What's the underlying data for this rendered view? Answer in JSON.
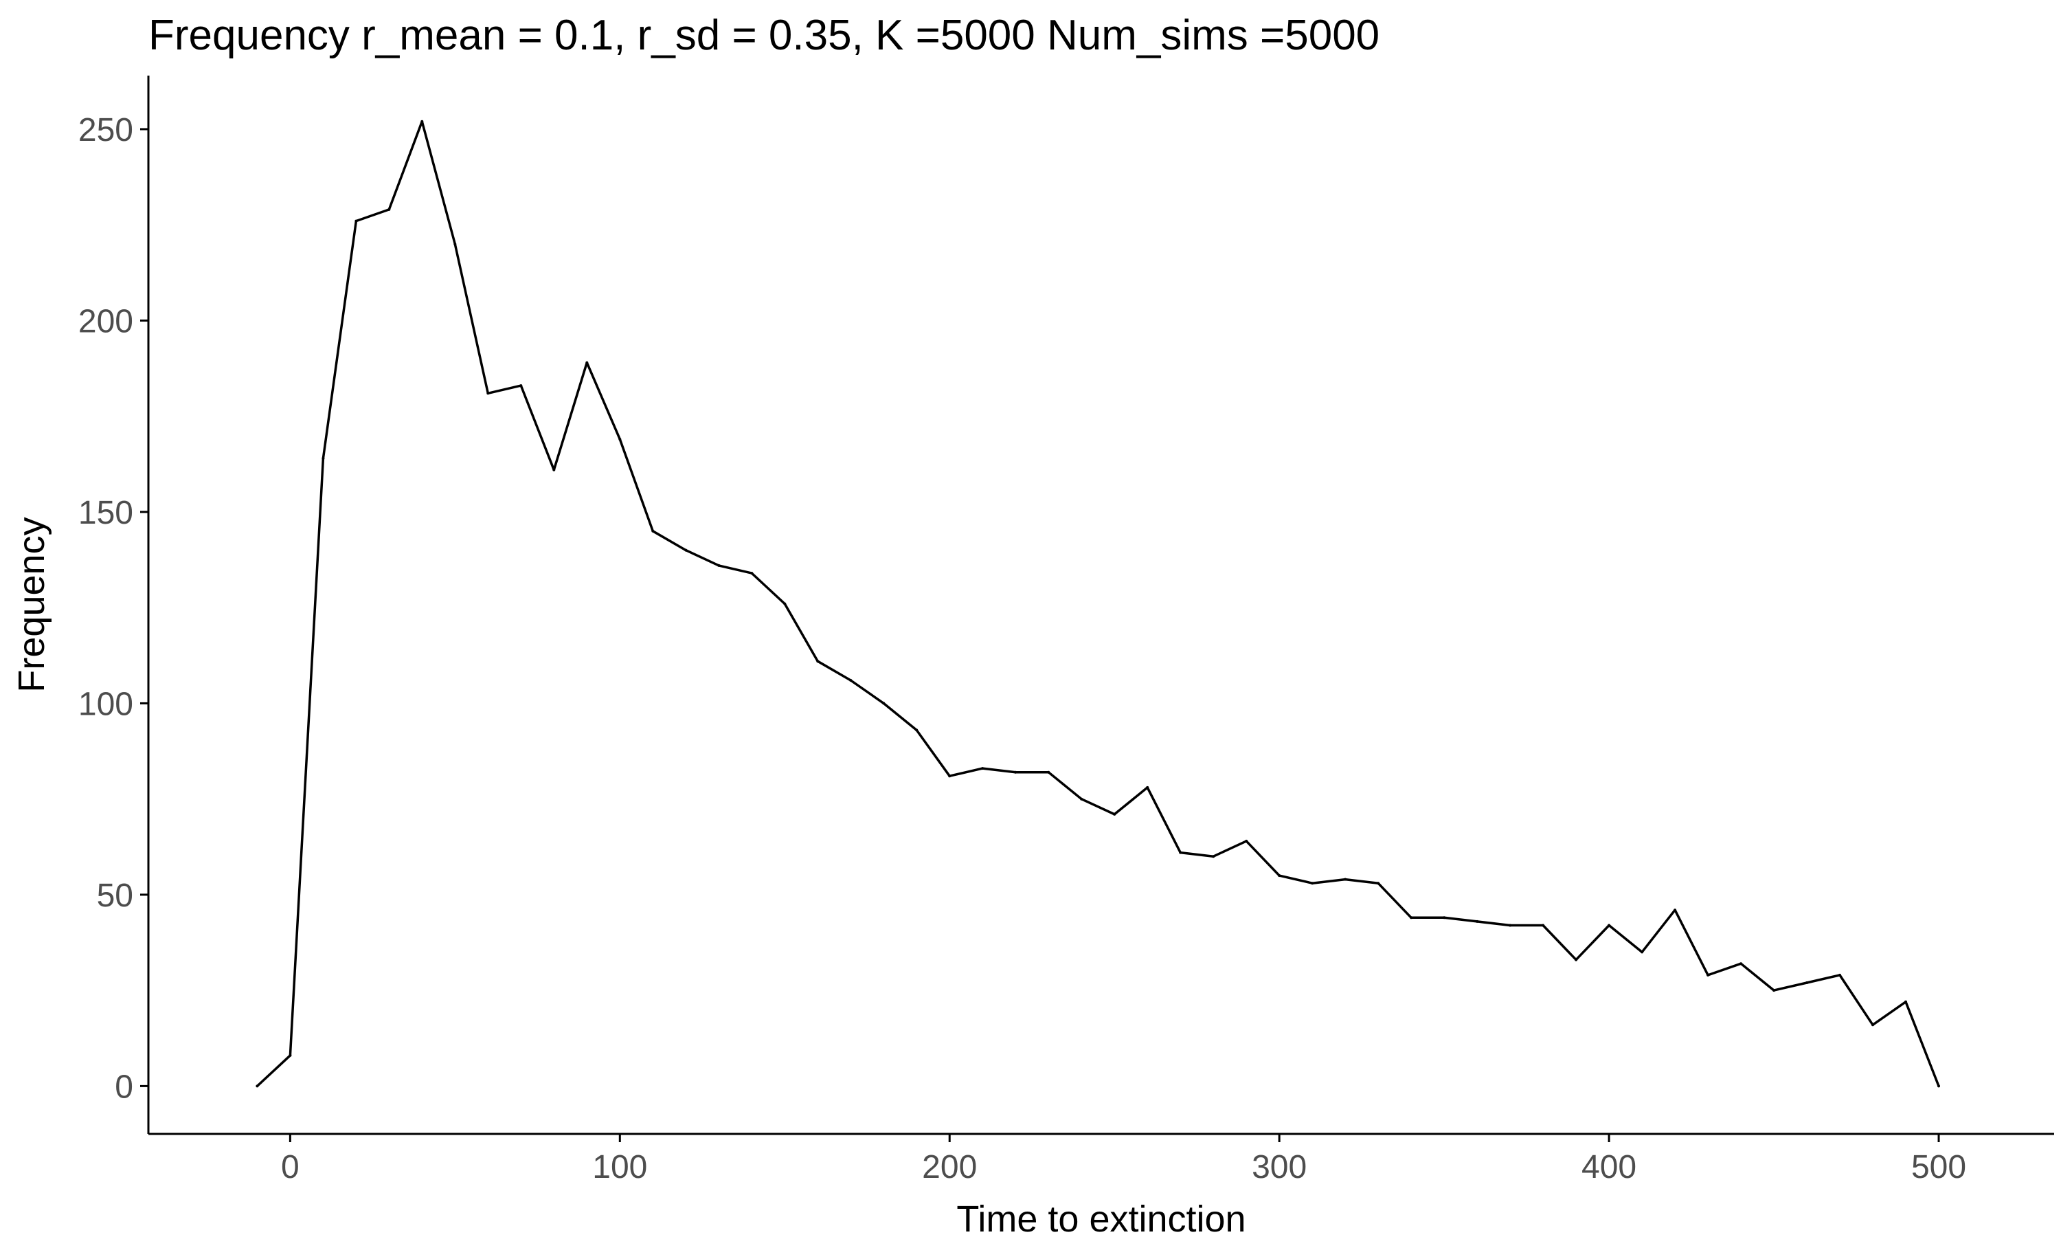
{
  "chart_data": {
    "type": "line",
    "title": "Frequency r_mean = 0.1, r_sd = 0.35, K =5000 Num_sims =5000",
    "xlabel": "Time to extinction",
    "ylabel": "Frequency",
    "xlim": [
      -43,
      535
    ],
    "ylim": [
      -12.5,
      264
    ],
    "xticks": [
      0,
      100,
      200,
      300,
      400,
      500
    ],
    "yticks": [
      0,
      50,
      100,
      150,
      200,
      250
    ],
    "grid": false,
    "legend": "none",
    "line_color": "#000000",
    "x": [
      -10,
      0,
      10,
      20,
      30,
      40,
      50,
      60,
      70,
      80,
      90,
      100,
      110,
      120,
      130,
      140,
      150,
      160,
      170,
      180,
      190,
      200,
      210,
      220,
      230,
      240,
      250,
      260,
      270,
      280,
      290,
      300,
      310,
      320,
      330,
      340,
      350,
      360,
      370,
      380,
      390,
      400,
      410,
      420,
      430,
      440,
      450,
      460,
      470,
      480,
      490,
      500
    ],
    "values": [
      0,
      8,
      164,
      226,
      229,
      252,
      220,
      181,
      183,
      161,
      189,
      169,
      145,
      140,
      136,
      134,
      126,
      111,
      106,
      100,
      93,
      81,
      83,
      82,
      82,
      75,
      71,
      78,
      61,
      60,
      64,
      55,
      53,
      54,
      53,
      44,
      44,
      43,
      42,
      42,
      33,
      42,
      35,
      46,
      29,
      32,
      25,
      27,
      29,
      16,
      22,
      0
    ]
  }
}
